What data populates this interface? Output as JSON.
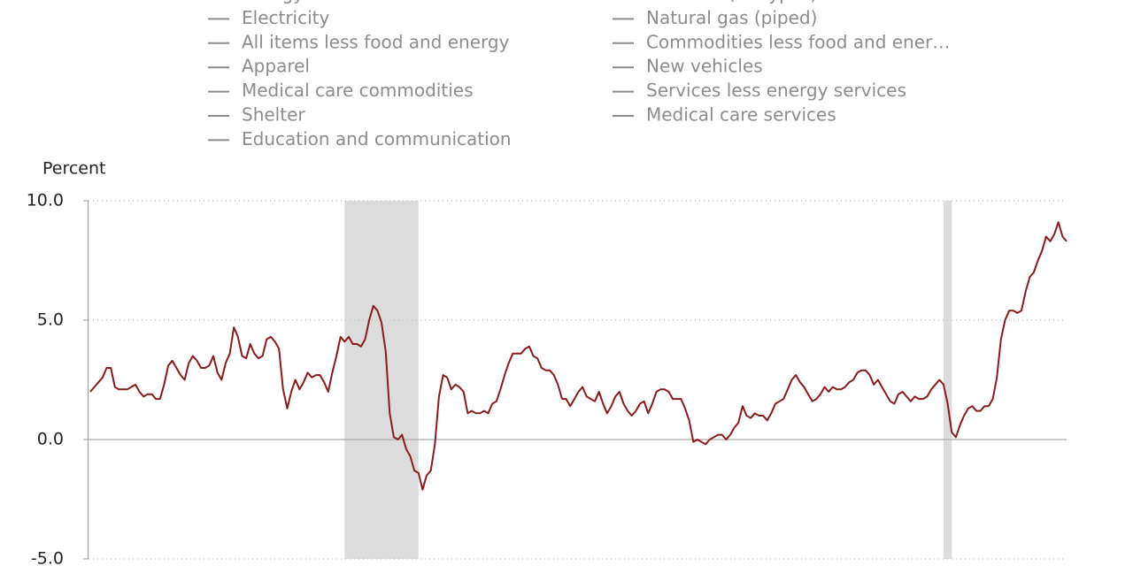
{
  "chart_data": {
    "type": "line",
    "y_axis_title": "Percent",
    "legend_columns": [
      [
        "Energy",
        "Electricity",
        "All items less food and energy",
        "Apparel",
        "Medical care commodities",
        "Shelter",
        "Education and communication"
      ],
      [
        "Gasoline (all types)",
        "Natural gas (piped)",
        "Commodities less food and ener…",
        "New vehicles",
        "Services less energy services",
        "Medical care services"
      ]
    ],
    "legend_color": "#8c8c8c",
    "series": [
      {
        "color": "#8b1a1a",
        "values": [
          2.0,
          2.2,
          2.4,
          2.6,
          3.0,
          3.0,
          2.2,
          2.1,
          2.1,
          2.1,
          2.2,
          2.3,
          2.0,
          1.8,
          1.9,
          1.9,
          1.7,
          1.7,
          2.3,
          3.1,
          3.3,
          3.0,
          2.7,
          2.5,
          3.2,
          3.5,
          3.3,
          3.0,
          3.0,
          3.1,
          3.5,
          2.8,
          2.5,
          3.2,
          3.6,
          4.7,
          4.3,
          3.5,
          3.4,
          4.0,
          3.6,
          3.4,
          3.5,
          4.2,
          4.3,
          4.1,
          3.8,
          2.1,
          1.3,
          2.0,
          2.5,
          2.1,
          2.4,
          2.8,
          2.6,
          2.7,
          2.7,
          2.4,
          2.0,
          2.8,
          3.5,
          4.3,
          4.1,
          4.3,
          4.0,
          4.0,
          3.9,
          4.2,
          5.0,
          5.6,
          5.4,
          4.9,
          3.7,
          1.1,
          0.1,
          0.0,
          0.2,
          -0.4,
          -0.7,
          -1.3,
          -1.4,
          -2.1,
          -1.5,
          -1.3,
          -0.2,
          1.8,
          2.7,
          2.6,
          2.1,
          2.3,
          2.2,
          2.0,
          1.1,
          1.2,
          1.1,
          1.1,
          1.2,
          1.1,
          1.5,
          1.6,
          2.1,
          2.7,
          3.2,
          3.6,
          3.6,
          3.6,
          3.8,
          3.9,
          3.5,
          3.4,
          3.0,
          2.9,
          2.9,
          2.7,
          2.3,
          1.7,
          1.7,
          1.4,
          1.7,
          2.0,
          2.2,
          1.8,
          1.7,
          1.6,
          2.0,
          1.5,
          1.1,
          1.4,
          1.8,
          2.0,
          1.5,
          1.2,
          1.0,
          1.2,
          1.5,
          1.6,
          1.1,
          1.5,
          2.0,
          2.1,
          2.1,
          2.0,
          1.7,
          1.7,
          1.7,
          1.3,
          0.8,
          -0.1,
          0.0,
          -0.1,
          -0.2,
          0.0,
          0.1,
          0.2,
          0.2,
          0.0,
          0.2,
          0.5,
          0.7,
          1.4,
          1.0,
          0.9,
          1.1,
          1.0,
          1.0,
          0.8,
          1.1,
          1.5,
          1.6,
          1.7,
          2.1,
          2.5,
          2.7,
          2.4,
          2.2,
          1.9,
          1.6,
          1.7,
          1.9,
          2.2,
          2.0,
          2.2,
          2.1,
          2.1,
          2.2,
          2.4,
          2.5,
          2.8,
          2.9,
          2.9,
          2.7,
          2.3,
          2.5,
          2.2,
          1.9,
          1.6,
          1.5,
          1.9,
          2.0,
          1.8,
          1.6,
          1.8,
          1.7,
          1.7,
          1.8,
          2.1,
          2.3,
          2.5,
          2.3,
          1.5,
          0.3,
          0.1,
          0.6,
          1.0,
          1.3,
          1.4,
          1.2,
          1.2,
          1.4,
          1.4,
          1.7,
          2.6,
          4.2,
          5.0,
          5.4,
          5.4,
          5.3,
          5.4,
          6.2,
          6.8,
          7.0,
          7.5,
          7.9,
          8.5,
          8.3,
          8.6,
          9.1,
          8.5,
          8.3
        ]
      }
    ],
    "shaded_ranges": [
      [
        62,
        80
      ],
      [
        208,
        210
      ]
    ],
    "shade_color": "#dcdcdc",
    "ylim": [
      -5,
      10
    ],
    "yticks": [
      {
        "value": -5,
        "label": "-5.0"
      },
      {
        "value": 0,
        "label": "0.0"
      },
      {
        "value": 5,
        "label": "5.0"
      },
      {
        "value": 10,
        "label": "10.0"
      }
    ],
    "grid": true
  }
}
